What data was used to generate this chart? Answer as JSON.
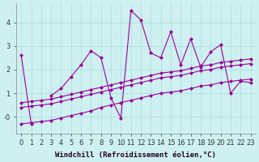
{
  "xlabel": "Windchill (Refroidissement éolien,°C)",
  "ylabel": "",
  "background_color": "#cef0f0",
  "grid_color": "#aadddd",
  "line_color": "#990099",
  "x_values": [
    0,
    1,
    2,
    3,
    4,
    5,
    6,
    7,
    8,
    9,
    10,
    11,
    12,
    13,
    14,
    15,
    16,
    17,
    18,
    19,
    20,
    21,
    22,
    23
  ],
  "y_main": [
    2.6,
    -0.3,
    null,
    0.9,
    1.2,
    1.7,
    2.2,
    2.8,
    2.5,
    0.8,
    -0.05,
    4.5,
    4.1,
    2.7,
    2.5,
    3.6,
    2.2,
    3.3,
    2.1,
    2.75,
    3.05,
    1.0,
    1.5,
    1.45
  ],
  "y_reg1": [
    0.6,
    0.65,
    0.7,
    0.75,
    0.85,
    0.95,
    1.05,
    1.15,
    1.25,
    1.35,
    1.45,
    1.55,
    1.65,
    1.75,
    1.85,
    1.9,
    1.95,
    2.05,
    2.15,
    2.2,
    2.3,
    2.35,
    2.4,
    2.45
  ],
  "y_reg2": [
    0.4,
    0.45,
    0.5,
    0.55,
    0.65,
    0.75,
    0.85,
    0.95,
    1.05,
    1.15,
    1.25,
    1.35,
    1.45,
    1.55,
    1.65,
    1.7,
    1.75,
    1.85,
    1.95,
    2.0,
    2.1,
    2.15,
    2.2,
    2.25
  ],
  "y_reg3": [
    -0.3,
    -0.25,
    -0.2,
    -0.15,
    -0.05,
    0.05,
    0.15,
    0.25,
    0.4,
    0.5,
    0.6,
    0.7,
    0.8,
    0.9,
    1.0,
    1.05,
    1.1,
    1.2,
    1.3,
    1.35,
    1.45,
    1.5,
    1.55,
    1.6
  ],
  "xlim": [
    -0.5,
    23.5
  ],
  "ylim": [
    -0.7,
    4.8
  ],
  "yticks": [
    0,
    1,
    2,
    3,
    4
  ],
  "ytick_labels": [
    "-0",
    "1",
    "2",
    "3",
    "4"
  ],
  "xticks": [
    0,
    1,
    2,
    3,
    4,
    5,
    6,
    7,
    8,
    9,
    10,
    11,
    12,
    13,
    14,
    15,
    16,
    17,
    18,
    19,
    20,
    21,
    22,
    23
  ],
  "markersize": 2.5,
  "linewidth": 0.8,
  "font_size": 6,
  "xlabel_fontsize": 6.5
}
